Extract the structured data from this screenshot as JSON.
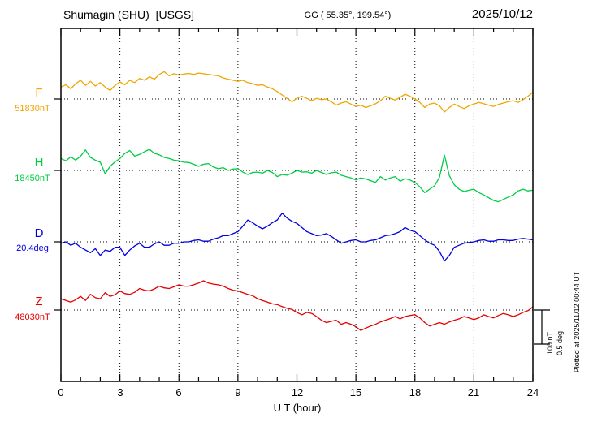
{
  "header": {
    "station": "Shumagin (SHU)  [USGS]",
    "geo": "GG ( 55.35°, 199.54°)",
    "date": "2025/10/12"
  },
  "xaxis": {
    "label": "U T (hour)",
    "ticks": [
      "0",
      "3",
      "6",
      "9",
      "12",
      "15",
      "18",
      "21",
      "24"
    ]
  },
  "scalebar": {
    "amp_nT": "100 nT",
    "amp_deg": "0.5 deg"
  },
  "plot_note": "Plotted at 2025/11/12 00:44 UT",
  "chart_data": {
    "type": "line",
    "title": "Shumagin (SHU) [USGS] magnetogram 2025/10/12",
    "xlabel": "U T (hour)",
    "x_range": [
      0,
      24
    ],
    "x_step_hours": 0.25,
    "grid": "dotted vertical every 3 hours, dotted horizontal at each series baseline",
    "scale": {
      "nT_per_division": 100,
      "deg_per_division": 0.5
    },
    "series": [
      {
        "name": "F",
        "baseline_label": "51830nT",
        "baseline_value": 51830,
        "units": "nT",
        "color": "#f0a500",
        "offsets": [
          35,
          42,
          30,
          45,
          55,
          40,
          52,
          38,
          48,
          35,
          25,
          40,
          50,
          42,
          55,
          48,
          60,
          55,
          65,
          58,
          72,
          80,
          68,
          74,
          70,
          73,
          75,
          72,
          76,
          74,
          72,
          70,
          68,
          62,
          58,
          55,
          52,
          55,
          48,
          45,
          40,
          42,
          35,
          30,
          22,
          12,
          2,
          -8,
          2,
          8,
          2,
          -5,
          2,
          -2,
          0,
          -8,
          -18,
          -12,
          -8,
          -15,
          -22,
          -18,
          -25,
          -20,
          -14,
          -5,
          8,
          2,
          -3,
          5,
          14,
          8,
          0,
          -10,
          -25,
          -15,
          -12,
          -20,
          -38,
          -25,
          -15,
          -22,
          -28,
          -20,
          -15,
          -10,
          -14,
          -18,
          -22,
          -16,
          -12,
          -8,
          -5,
          -10,
          -2,
          8,
          20
        ]
      },
      {
        "name": "H",
        "baseline_label": "18450nT",
        "baseline_value": 18450,
        "units": "nT",
        "color": "#00cc44",
        "offsets": [
          35,
          28,
          40,
          30,
          42,
          60,
          38,
          30,
          24,
          -10,
          12,
          25,
          35,
          50,
          58,
          42,
          47,
          55,
          62,
          50,
          46,
          38,
          35,
          30,
          28,
          24,
          23,
          18,
          12,
          18,
          20,
          10,
          5,
          8,
          0,
          4,
          5,
          -5,
          -12,
          -6,
          -5,
          -8,
          0,
          -6,
          -18,
          -12,
          -14,
          -8,
          0,
          -5,
          -4,
          -8,
          0,
          -6,
          -12,
          -7,
          -5,
          -14,
          -18,
          -22,
          -28,
          -22,
          -25,
          -30,
          -35,
          -18,
          -28,
          -22,
          -18,
          -32,
          -24,
          -28,
          -35,
          -48,
          -65,
          -55,
          -45,
          -20,
          45,
          -15,
          -42,
          -55,
          -62,
          -58,
          -55,
          -65,
          -72,
          -80,
          -88,
          -92,
          -85,
          -78,
          -72,
          -60,
          -55,
          -60,
          -58
        ]
      },
      {
        "name": "D",
        "baseline_label": "20.4deg",
        "baseline_value": 20.4,
        "units": "deg",
        "color": "#0000e0",
        "offsets": [
          -0.02,
          0,
          -0.05,
          -0.02,
          -0.08,
          -0.12,
          -0.16,
          -0.1,
          -0.2,
          -0.12,
          -0.14,
          -0.08,
          -0.08,
          -0.2,
          -0.12,
          -0.06,
          -0.02,
          -0.08,
          -0.08,
          -0.03,
          0,
          -0.05,
          -0.05,
          -0.02,
          -0.02,
          0,
          0,
          0.02,
          0.03,
          0.01,
          0.01,
          0.04,
          0.06,
          0.09,
          0.09,
          0.12,
          0.15,
          0.23,
          0.32,
          0.28,
          0.23,
          0.19,
          0.23,
          0.28,
          0.32,
          0.42,
          0.35,
          0.3,
          0.27,
          0.21,
          0.15,
          0.12,
          0.09,
          0.1,
          0.12,
          0.08,
          0.03,
          -0.02,
          0,
          0.02,
          0.03,
          0,
          0,
          0.02,
          0.03,
          0.06,
          0.09,
          0.1,
          0.12,
          0.15,
          0.21,
          0.17,
          0.15,
          0.09,
          0.03,
          -0.02,
          -0.05,
          -0.14,
          -0.28,
          -0.2,
          -0.08,
          -0.05,
          -0.02,
          -0.01,
          0,
          0.02,
          0.03,
          0.01,
          0.01,
          0.03,
          0.03,
          0.02,
          0.02,
          0.04,
          0.05,
          0.04,
          0.03
        ]
      },
      {
        "name": "Z",
        "baseline_label": "48030nT",
        "baseline_value": 48030,
        "units": "nT",
        "color": "#e60000",
        "offsets": [
          33,
          28,
          23,
          30,
          40,
          28,
          46,
          36,
          33,
          51,
          40,
          45,
          56,
          48,
          46,
          52,
          63,
          58,
          56,
          62,
          70,
          65,
          63,
          68,
          74,
          70,
          70,
          74,
          79,
          86,
          79,
          76,
          74,
          70,
          63,
          58,
          56,
          51,
          46,
          42,
          33,
          28,
          23,
          18,
          16,
          10,
          5,
          2,
          -7,
          -14,
          -7,
          -10,
          -19,
          -30,
          -37,
          -33,
          -30,
          -42,
          -37,
          -42,
          -49,
          -60,
          -53,
          -47,
          -42,
          -35,
          -30,
          -25,
          -19,
          -26,
          -19,
          -16,
          -14,
          -23,
          -37,
          -47,
          -42,
          -37,
          -42,
          -35,
          -30,
          -26,
          -19,
          -23,
          -28,
          -23,
          -14,
          -19,
          -23,
          -16,
          -10,
          -14,
          -19,
          -14,
          -7,
          -2,
          9
        ]
      }
    ]
  }
}
